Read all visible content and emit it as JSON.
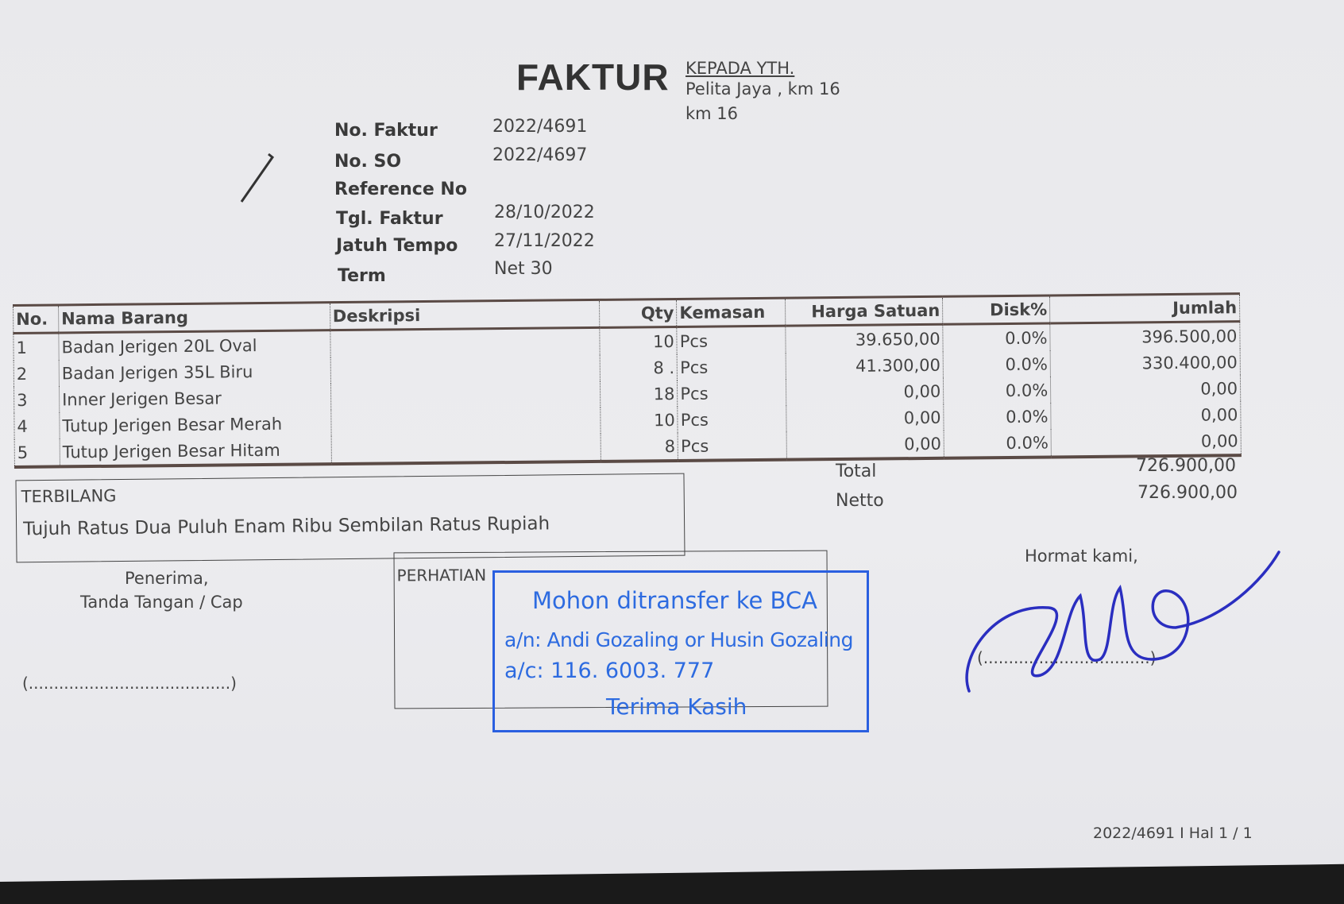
{
  "document": {
    "title": "FAKTUR",
    "recipient": {
      "label": "KEPADA YTH.",
      "line1": "Pelita Jaya , km 16",
      "line2": "km 16"
    },
    "fields": [
      {
        "label": "No. Faktur",
        "value": "2022/4691"
      },
      {
        "label": "No. SO",
        "value": "2022/4697"
      },
      {
        "label": "Reference No",
        "value": ""
      },
      {
        "label": "Tgl. Faktur",
        "value": "28/10/2022"
      },
      {
        "label": "Jatuh Tempo",
        "value": "27/11/2022"
      },
      {
        "label": "Term",
        "value": "Net 30"
      }
    ],
    "table": {
      "headers": [
        "No.",
        "Nama Barang",
        "Deskripsi",
        "Qty",
        "Kemasan",
        "Harga Satuan",
        "Disk%",
        "Jumlah"
      ],
      "rows": [
        [
          "1",
          "Badan Jerigen 20L Oval",
          "",
          "10",
          "Pcs",
          "39.650,00",
          "0.0%",
          "396.500,00"
        ],
        [
          "2",
          "Badan Jerigen 35L Biru",
          "",
          "8 .",
          "Pcs",
          "41.300,00",
          "0.0%",
          "330.400,00"
        ],
        [
          "3",
          "Inner Jerigen Besar",
          "",
          "18",
          "Pcs",
          "0,00",
          "0.0%",
          "0,00"
        ],
        [
          "4",
          "Tutup Jerigen Besar Merah",
          "",
          "10",
          "Pcs",
          "0,00",
          "0.0%",
          "0,00"
        ],
        [
          "5",
          "Tutup Jerigen Besar Hitam",
          "",
          "8",
          "Pcs",
          "0,00",
          "0.0%",
          "0,00"
        ]
      ]
    },
    "totals": {
      "total_label": "Total",
      "total_value": "726.900,00",
      "netto_label": "Netto",
      "netto_value": "726.900,00"
    },
    "terbilang": {
      "label": "TERBILANG",
      "text": "Tujuh Ratus Dua Puluh Enam Ribu Sembilan Ratus Rupiah"
    },
    "receiver": {
      "line1": "Penerima,",
      "line2": "Tanda Tangan / Cap",
      "sign_line": "(........................................)"
    },
    "perhatian": {
      "label": "PERHATIAN"
    },
    "stamp": {
      "line1": "Mohon ditransfer ke BCA",
      "line2": "a/n: Andi Gozaling or Husin Gozaling",
      "line3": "a/c: 116. 6003. 777",
      "line4": "Terima Kasih",
      "color": "#2d6be0"
    },
    "sender": {
      "label": "Hormat kami,",
      "sign_line": "(.................................)"
    },
    "footer": "2022/4691 I Hal 1 / 1"
  }
}
